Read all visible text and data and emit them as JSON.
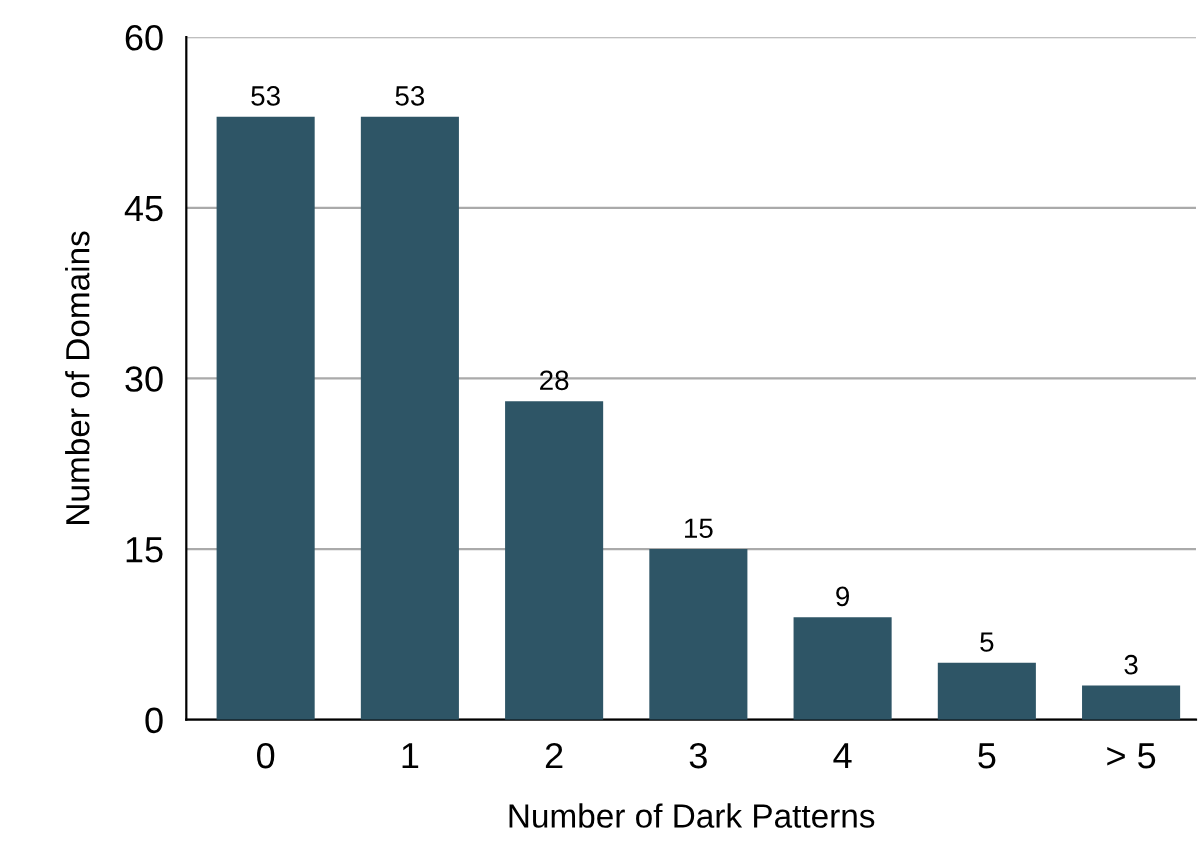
{
  "chart_data": {
    "type": "bar",
    "xlabel": "Number of Dark Patterns",
    "ylabel": "Number of Domains",
    "categories": [
      "0",
      "1",
      "2",
      "3",
      "4",
      "5",
      "> 5"
    ],
    "values": [
      53,
      53,
      28,
      15,
      9,
      5,
      3
    ],
    "color": "#2e5566",
    "ylim": [
      0,
      60
    ],
    "yticks": [
      0,
      15,
      30,
      45,
      60
    ],
    "grid": "y",
    "data_labels": true
  }
}
